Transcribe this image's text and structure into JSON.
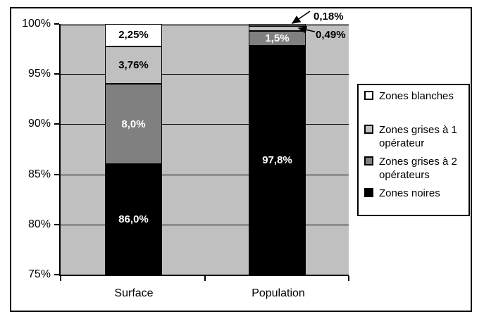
{
  "chart_data": {
    "type": "bar",
    "stacked": true,
    "categories": [
      "Surface",
      "Population"
    ],
    "series": [
      {
        "name": "Zones noires",
        "color": "#000000",
        "values": [
          86.0,
          97.8
        ],
        "labels": [
          "86,0%",
          "97,8%"
        ],
        "label_colors": [
          "#ffffff",
          "#ffffff"
        ]
      },
      {
        "name": "Zones grises à 2 opérateurs",
        "color": "#808080",
        "values": [
          8.0,
          1.5
        ],
        "labels": [
          "8,0%",
          "1,5%"
        ],
        "label_colors": [
          "#ffffff",
          "#ffffff"
        ]
      },
      {
        "name": "Zones grises à 1 opérateur",
        "color": "#c0c0c0",
        "values": [
          3.76,
          0.49
        ],
        "labels": [
          "3,76%",
          null
        ],
        "label_colors": [
          "#000000",
          null
        ]
      },
      {
        "name": "Zones blanches",
        "color": "#ffffff",
        "values": [
          2.25,
          0.18
        ],
        "labels": [
          "2,25%",
          null
        ],
        "label_colors": [
          "#000000",
          null
        ]
      }
    ],
    "callouts": [
      {
        "text": "0,18%",
        "target_series": "Zones blanches",
        "target_category": "Population"
      },
      {
        "text": "0,49%",
        "target_series": "Zones grises à 1 opérateur",
        "target_category": "Population"
      }
    ],
    "y_ticks": [
      "100%",
      "95%",
      "90%",
      "85%",
      "80%",
      "75%"
    ],
    "y_tick_values": [
      100,
      95,
      90,
      85,
      80,
      75
    ],
    "ylim": [
      75,
      100
    ],
    "grid": true,
    "legend_position": "right",
    "legend": [
      {
        "label": "Zones blanches",
        "color": "#ffffff"
      },
      {
        "label": "Zones grises à 1 opérateur",
        "color": "#c0c0c0"
      },
      {
        "label": "Zones grises à 2 opérateurs",
        "color": "#808080"
      },
      {
        "label": "Zones noires",
        "color": "#000000"
      }
    ],
    "colors": {
      "plot_background": "#c0c0c0",
      "gridline": "#000000",
      "top_gridline": "#808080",
      "axis": "#000000"
    },
    "title": "",
    "xlabel": "",
    "ylabel": ""
  }
}
